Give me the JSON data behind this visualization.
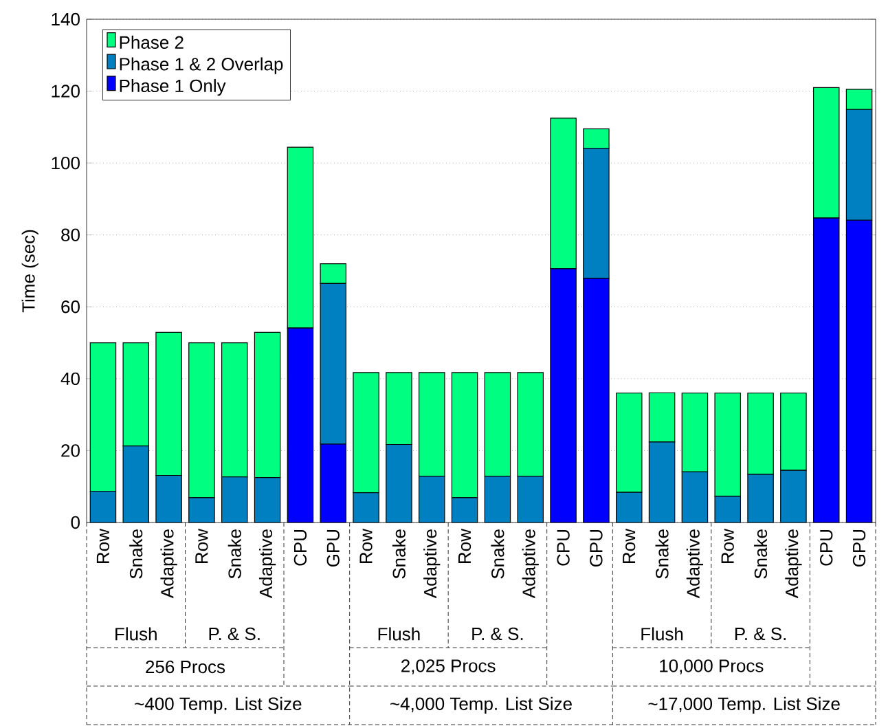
{
  "chart_data": {
    "type": "bar",
    "stacked": true,
    "ylabel": "Time (sec)",
    "categories": [
      "Row",
      "Snake",
      "Adaptive",
      "Row",
      "Snake",
      "Adaptive",
      "CPU",
      "GPU",
      "Row",
      "Snake",
      "Adaptive",
      "Row",
      "Snake",
      "Adaptive",
      "CPU",
      "GPU",
      "Row",
      "Snake",
      "Adaptive",
      "Row",
      "Snake",
      "Adaptive",
      "CPU",
      "GPU"
    ],
    "series": [
      {
        "name": "Phase 1 Only",
        "color": "#0000ff",
        "values": [
          0,
          0,
          0,
          0,
          0,
          0,
          54.1,
          21.8,
          0,
          0,
          0,
          0,
          0,
          0,
          70.6,
          67.9,
          0,
          0,
          0,
          0,
          0,
          0,
          84.7,
          84.1
        ]
      },
      {
        "name": "Phase 1 & 2 Overlap",
        "color": "#0080c0",
        "values": [
          8.7,
          21.3,
          13.1,
          6.9,
          12.7,
          12.5,
          0,
          44.7,
          8.3,
          21.7,
          12.9,
          6.9,
          12.9,
          12.9,
          0,
          36.2,
          8.4,
          22.4,
          14.1,
          7.3,
          13.4,
          14.5,
          0,
          30.8
        ]
      },
      {
        "name": "Phase 2",
        "color": "#00ff80",
        "values": [
          41.3,
          28.7,
          39.8,
          43.1,
          37.3,
          40.4,
          50.3,
          5.5,
          33.4,
          20.0,
          28.8,
          34.8,
          28.8,
          28.8,
          41.9,
          5.4,
          27.6,
          13.7,
          21.9,
          28.7,
          22.6,
          21.5,
          36.3,
          5.6
        ]
      }
    ],
    "ylim": [
      0,
      140
    ],
    "yticks": [
      0,
      20,
      40,
      60,
      80,
      100,
      120,
      140
    ],
    "grid": "y",
    "legend": "top left",
    "annotations": [
      "Flush",
      "P. & S.",
      "Flush",
      "P. & S.",
      "Flush",
      "P. & S.",
      "256 Procs",
      "2,025 Procs",
      "10,000 Procs",
      "~400 Temp. List Size",
      "~4,000 Temp. List Size",
      "~17,000 Temp. List Size"
    ]
  }
}
